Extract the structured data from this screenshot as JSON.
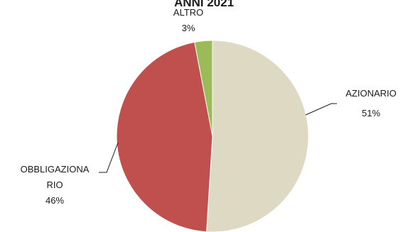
{
  "chart_data": {
    "type": "pie",
    "title": "ANNI 2021",
    "slices": [
      {
        "label": "AZIONARIO",
        "value": 51,
        "value_label": "51%",
        "color": "#ddd9c3"
      },
      {
        "label": "OBBLIGAZIONARIO",
        "label_lines": [
          "OBBLIGAZIONA",
          "RIO"
        ],
        "value": 46,
        "value_label": "46%",
        "color": "#c0504d"
      },
      {
        "label": "ALTRO",
        "value": 3,
        "value_label": "3%",
        "color": "#9bbb59"
      }
    ],
    "start_angle": "12 o'clock",
    "direction": "clockwise",
    "legend": "none"
  }
}
